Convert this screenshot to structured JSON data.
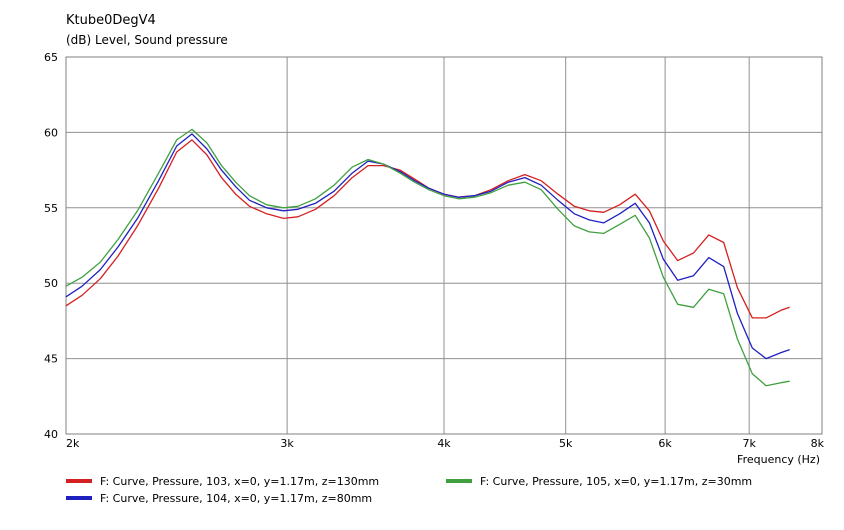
{
  "chart_data": {
    "type": "line",
    "title": "Ktube0DegV4",
    "ylabel": "(dB)  Level, Sound pressure",
    "xlabel": "Frequency  (Hz)",
    "x_scale": "log",
    "xlim": [
      2000,
      8000
    ],
    "ylim": [
      40,
      65
    ],
    "grid": true,
    "legend_position": "bottom",
    "x_ticks": [
      {
        "value": 2000,
        "label": "2k"
      },
      {
        "value": 3000,
        "label": "3k"
      },
      {
        "value": 4000,
        "label": "4k"
      },
      {
        "value": 5000,
        "label": "5k"
      },
      {
        "value": 6000,
        "label": "6k"
      },
      {
        "value": 7000,
        "label": "7k"
      },
      {
        "value": 8000,
        "label": "8k"
      }
    ],
    "y_ticks": [
      {
        "value": 40,
        "label": "40"
      },
      {
        "value": 45,
        "label": "45"
      },
      {
        "value": 50,
        "label": "50"
      },
      {
        "value": 55,
        "label": "55"
      },
      {
        "value": 60,
        "label": "60"
      },
      {
        "value": 65,
        "label": "65"
      }
    ],
    "series": [
      {
        "name": "F: Curve, Pressure, 103, x=0, y=1.17m, z=130mm",
        "color": "#d42020",
        "points": [
          [
            2000,
            48.5
          ],
          [
            2060,
            49.2
          ],
          [
            2130,
            50.3
          ],
          [
            2200,
            51.8
          ],
          [
            2280,
            53.8
          ],
          [
            2370,
            56.3
          ],
          [
            2450,
            58.7
          ],
          [
            2520,
            59.5
          ],
          [
            2590,
            58.5
          ],
          [
            2660,
            57
          ],
          [
            2730,
            55.9
          ],
          [
            2800,
            55.1
          ],
          [
            2890,
            54.6
          ],
          [
            2980,
            54.3
          ],
          [
            3060,
            54.4
          ],
          [
            3160,
            54.9
          ],
          [
            3270,
            55.8
          ],
          [
            3380,
            57
          ],
          [
            3480,
            57.8
          ],
          [
            3580,
            57.8
          ],
          [
            3690,
            57.5
          ],
          [
            3790,
            56.9
          ],
          [
            3890,
            56.3
          ],
          [
            4000,
            55.9
          ],
          [
            4110,
            55.7
          ],
          [
            4230,
            55.8
          ],
          [
            4360,
            56.2
          ],
          [
            4500,
            56.8
          ],
          [
            4640,
            57.2
          ],
          [
            4780,
            56.8
          ],
          [
            4930,
            55.9
          ],
          [
            5080,
            55.1
          ],
          [
            5220,
            54.8
          ],
          [
            5360,
            54.7
          ],
          [
            5520,
            55.2
          ],
          [
            5680,
            55.9
          ],
          [
            5830,
            54.8
          ],
          [
            5980,
            52.8
          ],
          [
            6140,
            51.5
          ],
          [
            6320,
            52
          ],
          [
            6500,
            53.2
          ],
          [
            6680,
            52.7
          ],
          [
            6850,
            49.7
          ],
          [
            7040,
            47.7
          ],
          [
            7220,
            47.7
          ],
          [
            7420,
            48.2
          ],
          [
            7540,
            48.4
          ]
        ]
      },
      {
        "name": "F: Curve, Pressure, 104, x=0, y=1.17m, z=80mm",
        "color": "#2020c0",
        "points": [
          [
            2000,
            49.1
          ],
          [
            2060,
            49.8
          ],
          [
            2130,
            50.9
          ],
          [
            2200,
            52.4
          ],
          [
            2280,
            54.3
          ],
          [
            2370,
            56.8
          ],
          [
            2450,
            59.1
          ],
          [
            2520,
            59.9
          ],
          [
            2590,
            58.9
          ],
          [
            2660,
            57.5
          ],
          [
            2730,
            56.4
          ],
          [
            2800,
            55.5
          ],
          [
            2890,
            55
          ],
          [
            2980,
            54.8
          ],
          [
            3060,
            54.9
          ],
          [
            3160,
            55.3
          ],
          [
            3270,
            56.1
          ],
          [
            3380,
            57.3
          ],
          [
            3480,
            58.1
          ],
          [
            3580,
            57.9
          ],
          [
            3690,
            57.4
          ],
          [
            3790,
            56.8
          ],
          [
            3890,
            56.3
          ],
          [
            4000,
            55.9
          ],
          [
            4110,
            55.7
          ],
          [
            4230,
            55.8
          ],
          [
            4360,
            56.1
          ],
          [
            4500,
            56.7
          ],
          [
            4640,
            57
          ],
          [
            4780,
            56.5
          ],
          [
            4930,
            55.5
          ],
          [
            5080,
            54.6
          ],
          [
            5220,
            54.2
          ],
          [
            5360,
            54
          ],
          [
            5520,
            54.6
          ],
          [
            5680,
            55.3
          ],
          [
            5830,
            54
          ],
          [
            5980,
            51.6
          ],
          [
            6140,
            50.2
          ],
          [
            6320,
            50.5
          ],
          [
            6500,
            51.7
          ],
          [
            6680,
            51.1
          ],
          [
            6850,
            48
          ],
          [
            7040,
            45.7
          ],
          [
            7220,
            45
          ],
          [
            7420,
            45.4
          ],
          [
            7540,
            45.6
          ]
        ]
      },
      {
        "name": "F: Curve, Pressure, 105, x=0, y=1.17m, z=30mm",
        "color": "#40a040",
        "points": [
          [
            2000,
            49.8
          ],
          [
            2060,
            50.4
          ],
          [
            2130,
            51.4
          ],
          [
            2200,
            52.9
          ],
          [
            2280,
            54.8
          ],
          [
            2370,
            57.3
          ],
          [
            2450,
            59.5
          ],
          [
            2520,
            60.2
          ],
          [
            2590,
            59.3
          ],
          [
            2660,
            57.8
          ],
          [
            2730,
            56.7
          ],
          [
            2800,
            55.8
          ],
          [
            2890,
            55.2
          ],
          [
            2980,
            55
          ],
          [
            3060,
            55.1
          ],
          [
            3160,
            55.6
          ],
          [
            3270,
            56.5
          ],
          [
            3380,
            57.7
          ],
          [
            3480,
            58.2
          ],
          [
            3580,
            57.9
          ],
          [
            3690,
            57.3
          ],
          [
            3790,
            56.7
          ],
          [
            3890,
            56.2
          ],
          [
            4000,
            55.8
          ],
          [
            4110,
            55.6
          ],
          [
            4230,
            55.7
          ],
          [
            4360,
            56
          ],
          [
            4500,
            56.5
          ],
          [
            4640,
            56.7
          ],
          [
            4780,
            56.2
          ],
          [
            4930,
            54.9
          ],
          [
            5080,
            53.8
          ],
          [
            5220,
            53.4
          ],
          [
            5360,
            53.3
          ],
          [
            5520,
            53.9
          ],
          [
            5680,
            54.5
          ],
          [
            5830,
            53
          ],
          [
            5980,
            50.4
          ],
          [
            6140,
            48.6
          ],
          [
            6320,
            48.4
          ],
          [
            6500,
            49.6
          ],
          [
            6680,
            49.3
          ],
          [
            6850,
            46.3
          ],
          [
            7040,
            44
          ],
          [
            7220,
            43.2
          ],
          [
            7420,
            43.4
          ],
          [
            7540,
            43.5
          ]
        ]
      }
    ]
  }
}
